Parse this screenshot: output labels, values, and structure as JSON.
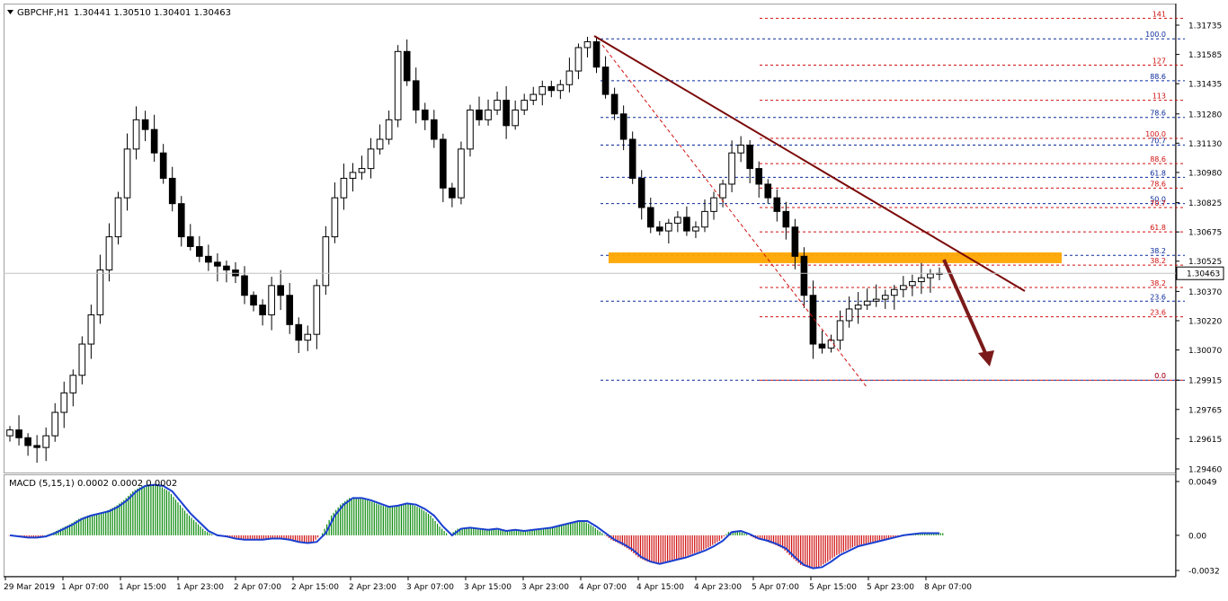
{
  "header": {
    "symbol": "GBPCHF,H1",
    "ohlc": "1.30441 1.30510 1.30401 1.30463",
    "dropdown_icon": "triangle-down-icon"
  },
  "macd_panel": {
    "label": "MACD (5,15,1) 0.0002 0.0002 0.0002",
    "ticks": [
      "0.0049",
      "0.00",
      "-0.0032"
    ]
  },
  "colors": {
    "bull_candle": "#ffffff",
    "bear_candle": "#000000",
    "resistance_zone": "#ffa500",
    "trendline": "#7b0a0a",
    "arrow": "#7b1a1a",
    "fib_red": "#d01010",
    "fib_blue": "#0a2a9a",
    "macd_line": "#1a3fd0",
    "hist_pos": "#0a8a0a",
    "hist_neg": "#d01010"
  },
  "chart_data": [
    {
      "type": "candlestick",
      "symbol": "GBPCHF",
      "timeframe": "H1",
      "title": "GBPCHF,H1 1.30441 1.30510 1.30401 1.30463",
      "ylim": [
        1.2946,
        1.3181
      ],
      "y_ticks": [
        "1.31735",
        "1.31585",
        "1.31435",
        "1.31280",
        "1.31130",
        "1.30980",
        "1.30825",
        "1.30675",
        "1.30525",
        "1.30370",
        "1.30220",
        "1.30070",
        "1.29915",
        "1.29765",
        "1.29615",
        "1.29460"
      ],
      "current_price": "1.30463",
      "x_ticks": [
        "29 Mar 2019",
        "1 Apr 07:00",
        "1 Apr 15:00",
        "1 Apr 23:00",
        "2 Apr 07:00",
        "2 Apr 15:00",
        "2 Apr 23:00",
        "3 Apr 07:00",
        "3 Apr 15:00",
        "3 Apr 23:00",
        "4 Apr 07:00",
        "4 Apr 15:00",
        "4 Apr 23:00",
        "5 Apr 07:00",
        "5 Apr 15:00",
        "5 Apr 23:00",
        "8 Apr 07:00"
      ],
      "close_path": [
        1.2966,
        1.2962,
        1.2958,
        1.2957,
        1.2963,
        1.2975,
        1.2985,
        1.2994,
        1.301,
        1.3025,
        1.3048,
        1.3065,
        1.3085,
        1.311,
        1.3125,
        1.312,
        1.3108,
        1.3095,
        1.3082,
        1.3065,
        1.306,
        1.3055,
        1.3052,
        1.305,
        1.3048,
        1.3045,
        1.3035,
        1.303,
        1.3025,
        1.304,
        1.3035,
        1.302,
        1.3012,
        1.3015,
        1.304,
        1.3065,
        1.3085,
        1.3095,
        1.3098,
        1.31,
        1.311,
        1.3115,
        1.3125,
        1.316,
        1.3145,
        1.313,
        1.3125,
        1.3115,
        1.309,
        1.3085,
        1.311,
        1.313,
        1.3125,
        1.313,
        1.3135,
        1.3122,
        1.313,
        1.3135,
        1.3138,
        1.3142,
        1.314,
        1.3143,
        1.315,
        1.3162,
        1.3165,
        1.3152,
        1.3138,
        1.3128,
        1.3115,
        1.3095,
        1.308,
        1.307,
        1.3068,
        1.3072,
        1.3075,
        1.3068,
        1.307,
        1.3078,
        1.3085,
        1.3092,
        1.3108,
        1.3112,
        1.31,
        1.3092,
        1.3085,
        1.3078,
        1.307,
        1.3055,
        1.3035,
        1.301,
        1.3008,
        1.3012,
        1.3022,
        1.3028,
        1.303,
        1.3032,
        1.3033,
        1.3035,
        1.3038,
        1.304,
        1.3042,
        1.3044,
        1.3046,
        1.30463
      ],
      "price_high": 1.3176,
      "price_low": 1.299,
      "annotations": [
        {
          "type": "horizontal_zone",
          "label": "resistance zone",
          "y_from": 1.30515,
          "y_to": 1.3057,
          "color": "orange"
        },
        {
          "type": "trendline",
          "from": [
            1.3168,
            "4 Apr 07:00"
          ],
          "to": [
            1.3038,
            "8 Apr 07:00"
          ]
        },
        {
          "type": "arrow_down",
          "direction": "down",
          "target": 1.3005
        },
        {
          "type": "dashed_line",
          "from": [
            1.3168,
            "4 Apr 07:00"
          ],
          "to": [
            1.2992,
            "5 Apr 15:00"
          ]
        }
      ],
      "fib_levels_blue": [
        {
          "label": "100.0",
          "value": 1.31665
        },
        {
          "label": "88.6",
          "value": 1.3145
        },
        {
          "label": "78.6",
          "value": 1.31262
        },
        {
          "label": "70.7",
          "value": 1.3112
        },
        {
          "label": "61.8",
          "value": 1.30955
        },
        {
          "label": "50.0",
          "value": 1.3082
        },
        {
          "label": "38.2",
          "value": 1.30555
        },
        {
          "label": "23.6",
          "value": 1.3032
        },
        {
          "label": "0.0",
          "value": 1.29915
        }
      ],
      "fib_levels_red": [
        {
          "label": "141",
          "value": 1.3177
        },
        {
          "label": "127",
          "value": 1.3153
        },
        {
          "label": "113",
          "value": 1.3135
        },
        {
          "label": "100.0",
          "value": 1.31155
        },
        {
          "label": "88.6",
          "value": 1.31025
        },
        {
          "label": "78.6",
          "value": 1.309
        },
        {
          "label": "70.7",
          "value": 1.308
        },
        {
          "label": "61.8",
          "value": 1.30675
        },
        {
          "label": "38.2",
          "value": 1.30505
        },
        {
          "label": "38.2",
          "value": 1.3039
        },
        {
          "label": "23.6",
          "value": 1.3024
        },
        {
          "label": "0.0",
          "value": 1.29915
        }
      ]
    },
    {
      "type": "bar",
      "title": "MACD (5,15,1) 0.0002 0.0002 0.0002",
      "ylim": [
        -0.0032,
        0.0049
      ],
      "macd_values": [
        0.0,
        -0.0001,
        -0.0002,
        -0.0002,
        -0.0001,
        0.0002,
        0.0006,
        0.001,
        0.0015,
        0.0018,
        0.002,
        0.0022,
        0.0026,
        0.0032,
        0.004,
        0.0045,
        0.0046,
        0.0045,
        0.004,
        0.003,
        0.002,
        0.0012,
        0.0004,
        0.0,
        -0.0001,
        -0.0003,
        -0.0004,
        -0.0004,
        -0.0004,
        -0.0003,
        -0.0003,
        -0.0004,
        -0.0006,
        -0.0007,
        -0.0006,
        0.0002,
        0.0018,
        0.0028,
        0.0034,
        0.0034,
        0.0032,
        0.0029,
        0.0026,
        0.0027,
        0.0029,
        0.0028,
        0.0024,
        0.0018,
        0.0008,
        0.0,
        0.0006,
        0.0007,
        0.0006,
        0.0005,
        0.0006,
        0.0004,
        0.0005,
        0.0004,
        0.0005,
        0.0006,
        0.0007,
        0.0009,
        0.0011,
        0.0013,
        0.0013,
        0.0008,
        0.0002,
        -0.0004,
        -0.0008,
        -0.0013,
        -0.002,
        -0.0024,
        -0.0026,
        -0.0024,
        -0.0022,
        -0.002,
        -0.0017,
        -0.0014,
        -0.001,
        -0.0005,
        0.0003,
        0.0004,
        0.0001,
        -0.0003,
        -0.0005,
        -0.0008,
        -0.0012,
        -0.002,
        -0.0027,
        -0.003,
        -0.0029,
        -0.0024,
        -0.0018,
        -0.0014,
        -0.001,
        -0.0008,
        -0.0006,
        -0.0004,
        -0.0002,
        0.0,
        0.0001,
        0.0002,
        0.0002,
        0.0002
      ]
    }
  ]
}
